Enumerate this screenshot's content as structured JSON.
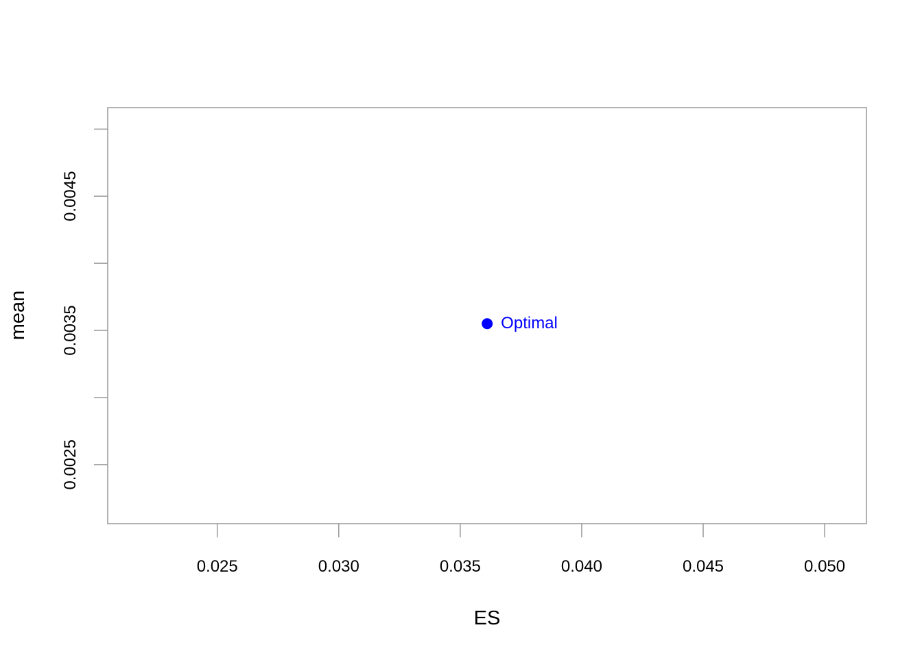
{
  "chart_data": {
    "type": "scatter",
    "title": "",
    "xlabel": "ES",
    "ylabel": "mean",
    "xlim": [
      0.02049,
      0.05172
    ],
    "ylim": [
      0.00206,
      0.00516
    ],
    "x_ticks": [
      {
        "value": 0.025,
        "label": "0.025"
      },
      {
        "value": 0.03,
        "label": "0.030"
      },
      {
        "value": 0.035,
        "label": "0.035"
      },
      {
        "value": 0.04,
        "label": "0.040"
      },
      {
        "value": 0.045,
        "label": "0.045"
      },
      {
        "value": 0.05,
        "label": "0.050"
      }
    ],
    "y_ticks": [
      {
        "value": 0.0025,
        "label": "0.0025",
        "labeled": true
      },
      {
        "value": 0.003,
        "label": "",
        "labeled": false
      },
      {
        "value": 0.0035,
        "label": "0.0035",
        "labeled": true
      },
      {
        "value": 0.004,
        "label": "",
        "labeled": false
      },
      {
        "value": 0.0045,
        "label": "0.0045",
        "labeled": true
      },
      {
        "value": 0.005,
        "label": "",
        "labeled": false
      }
    ],
    "grid": false,
    "legend": "none",
    "points": [
      {
        "x": 0.03611,
        "y": 0.00355,
        "label": "Optimal",
        "color": "#0000ff"
      }
    ],
    "axis_color": "#999999"
  }
}
